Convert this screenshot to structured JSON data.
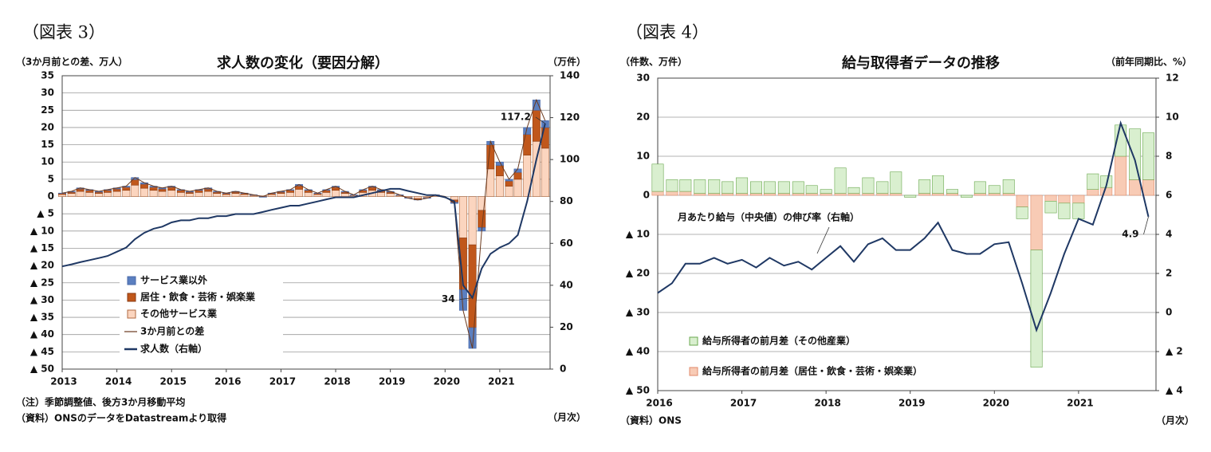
{
  "chart_data": [
    {
      "type": "bar",
      "stacked": true,
      "figure_label": "（図表 3）",
      "title": "求人数の変化（要因分解）",
      "ylabel": "（3か月前との差、万人）",
      "y2label": "（万件）",
      "xlabel": "（月次）",
      "notes": [
        "（注）季節調整値、後方3か月移動平均",
        "（資料）ONSのデータをDatastreamより取得"
      ],
      "x": [
        2013,
        2013.17,
        2013.33,
        2013.5,
        2013.67,
        2013.83,
        2014,
        2014.17,
        2014.33,
        2014.5,
        2014.67,
        2014.83,
        2015,
        2015.17,
        2015.33,
        2015.5,
        2015.67,
        2015.83,
        2016,
        2016.17,
        2016.33,
        2016.5,
        2016.67,
        2016.83,
        2017,
        2017.17,
        2017.33,
        2017.5,
        2017.67,
        2017.83,
        2018,
        2018.17,
        2018.33,
        2018.5,
        2018.67,
        2018.83,
        2019,
        2019.17,
        2019.33,
        2019.5,
        2019.67,
        2019.83,
        2020,
        2020.17,
        2020.33,
        2020.5,
        2020.67,
        2020.83,
        2021,
        2021.17,
        2021.33,
        2021.5,
        2021.67,
        2021.83
      ],
      "xlim": [
        2013,
        2021.92
      ],
      "xticks": [
        2013,
        2014,
        2015,
        2016,
        2017,
        2018,
        2019,
        2020,
        2021
      ],
      "ylim": [
        -50,
        35
      ],
      "yticks": [
        35,
        30,
        25,
        20,
        15,
        10,
        5,
        0,
        {
          "value": -5,
          "label": "▲ 5"
        },
        {
          "value": -10,
          "label": "▲ 10"
        },
        {
          "value": -15,
          "label": "▲ 15"
        },
        {
          "value": -20,
          "label": "▲ 20"
        },
        {
          "value": -25,
          "label": "▲ 25"
        },
        {
          "value": -30,
          "label": "▲ 30"
        },
        {
          "value": -35,
          "label": "▲ 35"
        },
        {
          "value": -40,
          "label": "▲ 40"
        },
        {
          "value": -45,
          "label": "▲ 45"
        },
        {
          "value": -50,
          "label": "▲ 50"
        }
      ],
      "y2lim": [
        0,
        140
      ],
      "y2ticks": [
        0,
        20,
        40,
        60,
        80,
        100,
        120,
        140
      ],
      "grid": true,
      "series": [
        {
          "name": "サービス業以外",
          "type": "bar",
          "color": "#5b7fc0",
          "values": [
            0.1,
            0.2,
            0.3,
            0.2,
            0.2,
            0.2,
            0.3,
            0.3,
            0.6,
            0.4,
            0.3,
            0.3,
            0.3,
            0.2,
            0.2,
            0.2,
            0.3,
            0.2,
            0.1,
            0.2,
            0.1,
            0.1,
            -0.1,
            0.1,
            0.2,
            0.2,
            0.4,
            0.2,
            0.1,
            0.2,
            0.3,
            0.2,
            0.1,
            0.2,
            0.3,
            0.2,
            0.2,
            0.1,
            -0.1,
            -0.1,
            -0.1,
            0.1,
            0,
            -0.3,
            -6,
            -6,
            -1,
            1,
            1,
            0.5,
            1,
            2,
            3,
            2
          ]
        },
        {
          "name": "居住・飲食・芸術・娯楽業",
          "type": "bar",
          "color": "#c0571b",
          "values": [
            0.3,
            0.4,
            0.7,
            0.6,
            0.4,
            0.6,
            0.7,
            0.9,
            1.6,
            1.2,
            0.9,
            0.7,
            0.9,
            0.6,
            0.4,
            0.6,
            0.7,
            0.4,
            0.3,
            0.4,
            0.3,
            0.1,
            -0.1,
            0.3,
            0.4,
            0.6,
            1,
            0.6,
            0.3,
            0.6,
            0.9,
            0.4,
            0.1,
            0.6,
            0.9,
            0.6,
            0.4,
            0.1,
            -0.1,
            -0.3,
            -0.1,
            0.1,
            0,
            -0.7,
            -15,
            -24,
            -5,
            7,
            3,
            1.5,
            2,
            6,
            9,
            6
          ]
        },
        {
          "name": "その他サービス業",
          "type": "bar",
          "color": "#fbd5bf",
          "values": [
            0.6,
            0.9,
            1.5,
            1.2,
            0.9,
            1.2,
            1.5,
            1.8,
            3.3,
            2.4,
            1.8,
            1.5,
            1.8,
            1.2,
            0.9,
            1.2,
            1.5,
            0.9,
            0.6,
            0.9,
            0.6,
            0.3,
            0.2,
            0.6,
            0.9,
            1.2,
            2.1,
            1.2,
            0.6,
            1.2,
            1.8,
            0.9,
            0.3,
            1.2,
            1.8,
            1.2,
            0.9,
            0.3,
            -0.3,
            -0.6,
            -0.3,
            0.3,
            0,
            -1,
            -12,
            -14,
            -4,
            8,
            6,
            3,
            5,
            12,
            16,
            14
          ]
        },
        {
          "name": "3か月前との差",
          "type": "line",
          "color": "#6b3a1e",
          "values": [
            1,
            1.5,
            2.5,
            2,
            1.5,
            2,
            2.5,
            3,
            5.5,
            4,
            3,
            2.5,
            3,
            2,
            1.5,
            2,
            2.5,
            1.5,
            1,
            1.5,
            1,
            0.5,
            0,
            1,
            1.5,
            2,
            3.5,
            2,
            1,
            2,
            3,
            1.5,
            0.5,
            2,
            3,
            2,
            1.5,
            0.5,
            -0.5,
            -1,
            -0.5,
            0.5,
            0,
            -2,
            -33,
            -44,
            -10,
            16,
            10,
            5,
            8,
            20,
            28,
            22
          ]
        },
        {
          "name": "求人数（右軸）",
          "type": "line",
          "axis": "y2",
          "color": "#1f3864",
          "values": [
            49,
            50,
            51,
            52,
            53,
            54,
            56,
            58,
            62,
            65,
            67,
            68,
            70,
            71,
            71,
            72,
            72,
            73,
            73,
            74,
            74,
            74,
            75,
            76,
            77,
            78,
            78,
            79,
            80,
            81,
            82,
            82,
            82,
            83,
            84,
            85,
            86,
            86,
            85,
            84,
            83,
            83,
            82,
            80,
            40,
            34,
            48,
            55,
            58,
            60,
            64,
            80,
            100,
            117.2
          ]
        }
      ]
    },
    {
      "type": "bar",
      "stacked": true,
      "figure_label": "（図表 4）",
      "title": "給与取得者データの推移",
      "ylabel": "（件数、万件）",
      "y2label": "（前年同期比、%）",
      "xlabel": "（月次）",
      "notes": [
        "（資料）ONS"
      ],
      "x": [
        2016,
        2016.17,
        2016.33,
        2016.5,
        2016.67,
        2016.83,
        2017,
        2017.17,
        2017.33,
        2017.5,
        2017.67,
        2017.83,
        2018,
        2018.17,
        2018.33,
        2018.5,
        2018.67,
        2018.83,
        2019,
        2019.17,
        2019.33,
        2019.5,
        2019.67,
        2019.83,
        2020,
        2020.17,
        2020.33,
        2020.5,
        2020.67,
        2020.83,
        2021,
        2021.17,
        2021.33,
        2021.5,
        2021.67,
        2021.83
      ],
      "xlim": [
        2016,
        2021.92
      ],
      "xticks": [
        2016,
        2017,
        2018,
        2019,
        2020,
        2021
      ],
      "ylim": [
        -50,
        30
      ],
      "yticks": [
        30,
        20,
        10,
        0,
        {
          "value": -10,
          "label": "▲ 10"
        },
        {
          "value": -20,
          "label": "▲ 20"
        },
        {
          "value": -30,
          "label": "▲ 30"
        },
        {
          "value": -40,
          "label": "▲ 40"
        },
        {
          "value": -50,
          "label": "▲ 50"
        }
      ],
      "y2lim": [
        -4,
        12
      ],
      "y2ticks": [
        12,
        10,
        8,
        6,
        4,
        2,
        0,
        {
          "value": -2,
          "label": "▲ 2"
        },
        {
          "value": -4,
          "label": "▲ 4"
        }
      ],
      "grid": true,
      "series": [
        {
          "name": "給与所得者の前月差（その他産業）",
          "type": "bar",
          "color": "#d9efcf",
          "values": [
            7,
            3,
            3,
            3.5,
            3.5,
            3,
            4,
            3,
            3,
            3,
            3,
            2,
            1,
            6.5,
            1.5,
            4,
            3,
            5.5,
            -0.5,
            3.5,
            4.5,
            1,
            -0.5,
            3,
            2,
            3.5,
            -3,
            -30,
            -3,
            -4,
            -4,
            4,
            3,
            8,
            13,
            12
          ]
        },
        {
          "name": "給与所得者の前月差（居住・飲食・芸術・娯楽業）",
          "type": "bar",
          "color": "#f8cbb5",
          "values": [
            1,
            1,
            1,
            0.5,
            0.5,
            0.5,
            0.5,
            0.5,
            0.5,
            0.5,
            0.5,
            0.5,
            0.5,
            0.5,
            0.5,
            0.5,
            0.5,
            0.5,
            0,
            0.5,
            0.5,
            0.5,
            0,
            0.5,
            0.5,
            0.5,
            -3,
            -14,
            -1.5,
            -2,
            -2,
            1.5,
            2,
            10,
            4,
            4
          ]
        },
        {
          "name": "月あたり給与（中央値）の伸び率（右軸）",
          "type": "line",
          "axis": "y2",
          "color": "#1f3864",
          "values": [
            1,
            1.5,
            2.5,
            2.5,
            2.8,
            2.5,
            2.7,
            2.3,
            2.8,
            2.4,
            2.6,
            2.2,
            2.8,
            3.4,
            2.6,
            3.5,
            3.8,
            3.2,
            3.2,
            3.8,
            4.6,
            3.2,
            3,
            3,
            3.5,
            3.6,
            1.5,
            -0.9,
            1,
            3,
            4.8,
            4.5,
            6.5,
            9.7,
            7.8,
            4.9
          ]
        }
      ]
    }
  ]
}
